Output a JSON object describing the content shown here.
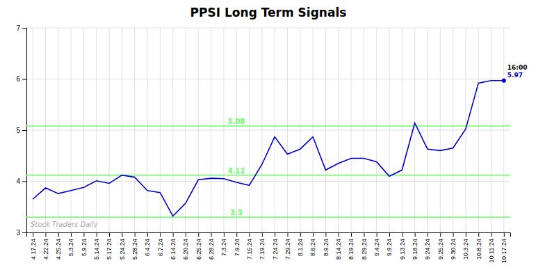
{
  "chart_data": {
    "type": "line",
    "title": "PPSI Long Term Signals",
    "categories": [
      "4.17.24",
      "4.22.24",
      "4.25.24",
      "5.3.24",
      "5.9.24",
      "5.14.24",
      "5.17.24",
      "5.24.24",
      "5.28.24",
      "6.4.24",
      "6.7.24",
      "6.14.24",
      "6.20.24",
      "6.25.24",
      "6.28.24",
      "7.3.24",
      "7.9.24",
      "7.15.24",
      "7.19.24",
      "7.24.24",
      "7.29.24",
      "8.1.24",
      "8.6.24",
      "8.9.24",
      "8.14.24",
      "8.19.24",
      "8.29.24",
      "9.4.24",
      "9.9.24",
      "9.13.24",
      "9.18.24",
      "9.24.24",
      "9.25.24",
      "9.30.24",
      "10.3.24",
      "10.8.24",
      "10.11.24",
      "10.17.24"
    ],
    "values": [
      3.65,
      3.87,
      3.76,
      3.82,
      3.88,
      4.01,
      3.96,
      4.12,
      4.08,
      3.82,
      3.78,
      3.32,
      3.57,
      4.03,
      4.06,
      4.05,
      3.98,
      3.92,
      4.33,
      4.87,
      4.53,
      4.63,
      4.87,
      4.22,
      4.35,
      4.45,
      4.45,
      4.38,
      4.1,
      4.22,
      5.14,
      4.63,
      4.6,
      4.65,
      5.02,
      5.92,
      5.97,
      5.97
    ],
    "color": "#0000cc",
    "ylim": [
      3.0,
      7.0
    ],
    "yticks": [
      3,
      4,
      5,
      6,
      7
    ],
    "grid": true,
    "hlines": [
      {
        "value": 3.3,
        "label": "3.3",
        "color": "#66ff66"
      },
      {
        "value": 4.12,
        "label": "4.12",
        "color": "#66ff66"
      },
      {
        "value": 5.08,
        "label": "5.08",
        "color": "#66ff66"
      }
    ],
    "watermark": "Stock Traders Daily",
    "annotations": [
      {
        "text": "16:00",
        "color": "#000000"
      },
      {
        "text": "5.97",
        "color": "#0000cc"
      }
    ]
  }
}
